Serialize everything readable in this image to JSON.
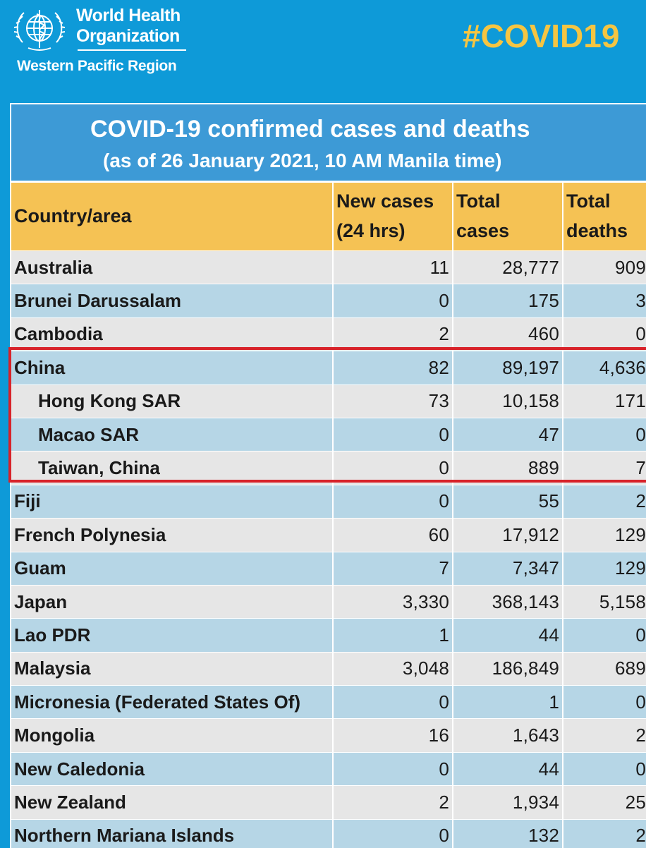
{
  "header": {
    "org_line1": "World Health",
    "org_line2": "Organization",
    "region": "Western Pacific Region",
    "hashtag": "#COVID19",
    "logo_icon": "who-emblem-icon"
  },
  "table": {
    "title": "COVID-19 confirmed cases and deaths",
    "subtitle": "(as of 26 January 2021, 10 AM Manila time)",
    "columns": {
      "country": "Country/area",
      "new_cases_1": "New cases",
      "new_cases_2": "(24 hrs)",
      "total_cases_1": "Total",
      "total_cases_2": "cases",
      "total_deaths_1": "Total",
      "total_deaths_2": "deaths"
    },
    "rows": [
      {
        "country": "Australia",
        "new": "11",
        "total": "28,777",
        "deaths": "909"
      },
      {
        "country": "Brunei Darussalam",
        "new": "0",
        "total": "175",
        "deaths": "3"
      },
      {
        "country": "Cambodia",
        "new": "2",
        "total": "460",
        "deaths": "0"
      },
      {
        "country": "China",
        "new": "82",
        "total": "89,197",
        "deaths": "4,636"
      },
      {
        "country": "Hong Kong SAR",
        "new": "73",
        "total": "10,158",
        "deaths": "171"
      },
      {
        "country": "Macao SAR",
        "new": "0",
        "total": "47",
        "deaths": "0"
      },
      {
        "country": "Taiwan, China",
        "new": "0",
        "total": "889",
        "deaths": "7"
      },
      {
        "country": "Fiji",
        "new": "0",
        "total": "55",
        "deaths": "2"
      },
      {
        "country": "French Polynesia",
        "new": "60",
        "total": "17,912",
        "deaths": "129"
      },
      {
        "country": "Guam",
        "new": "7",
        "total": "7,347",
        "deaths": "129"
      },
      {
        "country": "Japan",
        "new": "3,330",
        "total": "368,143",
        "deaths": "5,158"
      },
      {
        "country": "Lao PDR",
        "new": "1",
        "total": "44",
        "deaths": "0"
      },
      {
        "country": "Malaysia",
        "new": "3,048",
        "total": "186,849",
        "deaths": "689"
      },
      {
        "country": "Micronesia (Federated States Of)",
        "new": "0",
        "total": "1",
        "deaths": "0"
      },
      {
        "country": "Mongolia",
        "new": "16",
        "total": "1,643",
        "deaths": "2"
      },
      {
        "country": "New Caledonia",
        "new": "0",
        "total": "44",
        "deaths": "0"
      },
      {
        "country": "New Zealand",
        "new": "2",
        "total": "1,934",
        "deaths": "25"
      },
      {
        "country": "Northern Mariana Islands",
        "new": "0",
        "total": "132",
        "deaths": "2"
      }
    ]
  },
  "colors": {
    "background": "#0e9ad8",
    "title_band": "#3d9ad6",
    "header_row": "#f5c254",
    "row_gray": "#e6e6e6",
    "row_blue": "#b6d6e6",
    "highlight_box": "#d8232a",
    "hashtag": "#f5c542"
  }
}
